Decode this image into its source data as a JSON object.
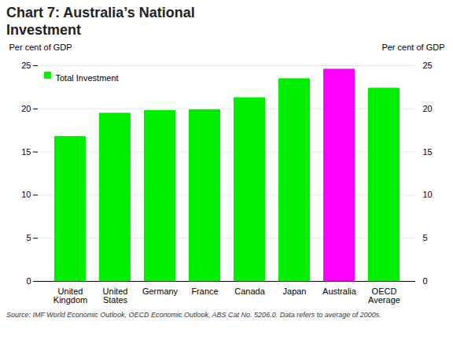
{
  "chart_data": {
    "type": "bar",
    "title": "Chart 7: Australia’s National\nInvestment",
    "categories": [
      "United\nKingdom",
      "United\nStates",
      "Germany",
      "France",
      "Canada",
      "Japan",
      "Australia",
      "OECD\nAverage"
    ],
    "series": [
      {
        "name": "Total Investment",
        "color": "#00ee00",
        "colors": [
          "#00ee00",
          "#00ee00",
          "#00ee00",
          "#00ee00",
          "#00ee00",
          "#00ee00",
          "#ff00ff",
          "#00ee00"
        ],
        "values": [
          16.8,
          19.5,
          19.8,
          19.9,
          21.3,
          23.5,
          24.6,
          22.4
        ]
      }
    ],
    "ylabel": "Per cent of GDP",
    "y2label": "Per cent of GDP",
    "ylim": [
      0,
      25
    ],
    "yticks": [
      0,
      5,
      10,
      15,
      20,
      25
    ],
    "y2lim": [
      0,
      25
    ],
    "y2ticks": [
      0,
      5,
      10,
      15,
      20,
      25
    ],
    "grid": true,
    "legend": "upper left",
    "source": "Source: IMF World Economic Outlook, OECD Economic Outlook, ABS Cat No. 5206.0. Data refers to average of 2000s."
  }
}
